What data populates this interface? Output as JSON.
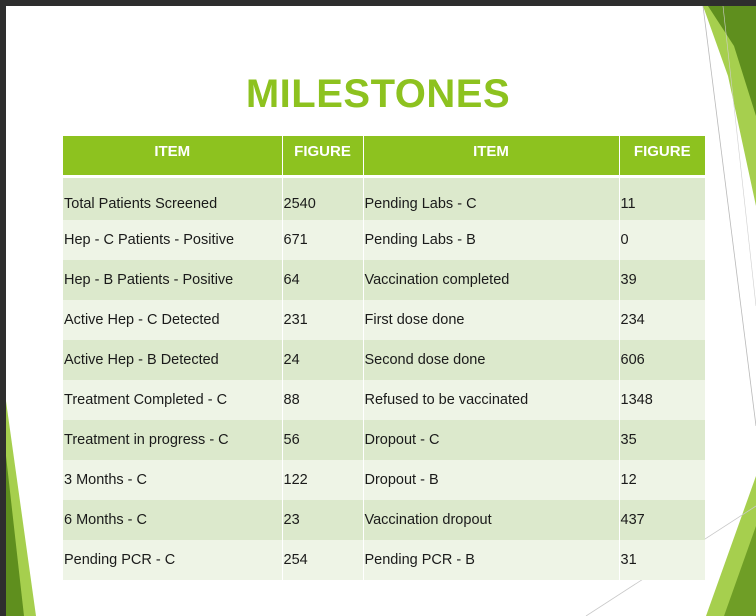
{
  "slide": {
    "title": "MILESTONES"
  },
  "table": {
    "headers": [
      "ITEM",
      "FIGURE",
      "ITEM",
      "FIGURE"
    ],
    "rows": [
      [
        "Total Patients Screened",
        "2540",
        "Pending Labs - C",
        "11"
      ],
      [
        "Hep - C Patients - Positive",
        "671",
        "Pending Labs - B",
        "0"
      ],
      [
        "Hep - B Patients - Positive",
        "64",
        "Vaccination completed",
        "39"
      ],
      [
        "Active Hep - C Detected",
        "231",
        "First dose done",
        "234"
      ],
      [
        "Active Hep - B Detected",
        "24",
        "Second dose done",
        "606"
      ],
      [
        "Treatment Completed - C",
        "88",
        "Refused to be vaccinated",
        "1348"
      ],
      [
        "Treatment in progress - C",
        "56",
        "Dropout - C",
        "35"
      ],
      [
        "3 Months - C",
        "122",
        "Dropout - B",
        "12"
      ],
      [
        "6 Months - C",
        "23",
        "Vaccination dropout",
        "437"
      ],
      [
        "Pending PCR - C",
        "254",
        "Pending PCR - B",
        "31"
      ]
    ]
  },
  "colors": {
    "accent_green": "#8dc21f",
    "dark_green": "#5f8f1e",
    "row_band_dark": "#dce9cc",
    "row_band_light": "#eef4e6"
  }
}
